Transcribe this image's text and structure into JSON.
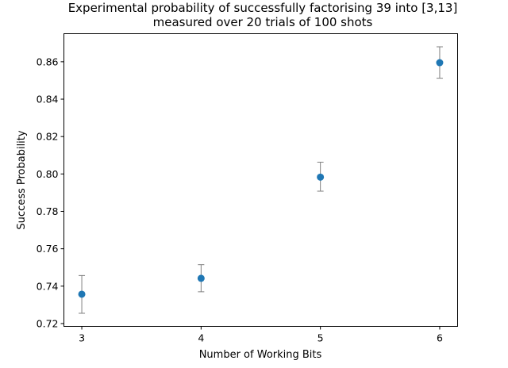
{
  "chart_data": {
    "type": "scatter",
    "title_line1": "Experimental probability of successfully factorising 39 into [3,13]",
    "title_line2": "measured over 20 trials of 100 shots",
    "xlabel": "Number of Working Bits",
    "ylabel": "Success Probability",
    "x_ticks": [
      3,
      4,
      5,
      6
    ],
    "y_ticks": [
      0.72,
      0.74,
      0.76,
      0.78,
      0.8,
      0.82,
      0.84,
      0.86
    ],
    "y_tick_labels": [
      "0.72",
      "0.74",
      "0.76",
      "0.78",
      "0.80",
      "0.82",
      "0.84",
      "0.86"
    ],
    "xlim": [
      2.85,
      6.15
    ],
    "ylim": [
      0.7185,
      0.875
    ],
    "grid": false,
    "series": [
      {
        "x": [
          3,
          4,
          5,
          6
        ],
        "y": [
          0.7357,
          0.7442,
          0.7983,
          0.8595
        ],
        "yerr_low": [
          0.7255,
          0.737,
          0.7908,
          0.8512
        ],
        "yerr_high": [
          0.7457,
          0.7515,
          0.8063,
          0.868
        ],
        "color": "#1f77b4",
        "errorbar_color": "#808080"
      }
    ]
  }
}
